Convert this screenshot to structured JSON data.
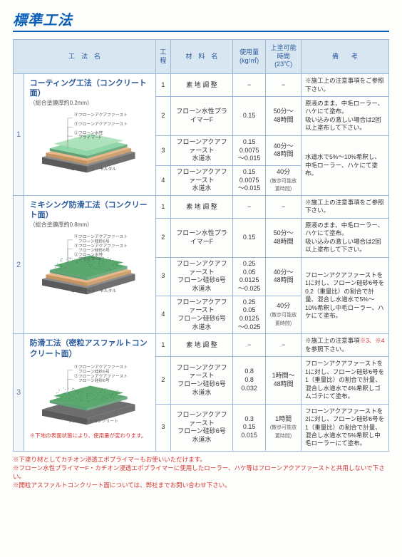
{
  "title": "標準工法",
  "headers": {
    "name": "工　法　名",
    "step": "工程",
    "material": "材　料　名",
    "usage": "使用量\n(kg/㎡)",
    "recoat": "上塗可能時間\n(23℃)",
    "remarks": "備　　考"
  },
  "groups": [
    {
      "num": "1",
      "method_title": "コーティング工法（コンクリート面）",
      "method_sub": "（総合塗膜厚約0.2mm）",
      "diagram_labels": [
        "④フローンアクアファースト",
        "③フローンアクアファースト",
        "②フローン水性\n　プライマーF",
        "コンクリート・モルタル"
      ],
      "diagram_colors": {
        "top": "#8fd6a8",
        "mid": "#e8b78a",
        "base": "#8c8c8c"
      },
      "rows": [
        {
          "step": "1",
          "material": "素 地 調 整",
          "usage": "−",
          "recoat": "−",
          "remark": "※施工上の注意事項をご参照下さい。"
        },
        {
          "step": "2",
          "material": "フローン水性プライマーF",
          "usage": "0.15",
          "recoat": "50分〜\n48時間",
          "remark": "原液のまま、中毛ローラー、ハケにて塗布。\n吸い込みの激しい場合は2回以上塗布して下さい。"
        },
        {
          "step": "3",
          "material": "フローンアクアファースト\n水道水",
          "usage": "0.15\n0.0075\n〜0.015",
          "recoat": "40分〜\n48時間",
          "remark": "水道水で5%〜10%希釈し、中毛ローラー、ハケにて塗布。",
          "merge_down_remark": true
        },
        {
          "step": "4",
          "material": "フローンアクアファースト\n水道水",
          "usage": "0.15\n0.0075\n〜0.015",
          "recoat": "40分",
          "recoat_sub": "(散歩可能放置時間)"
        }
      ]
    },
    {
      "num": "2",
      "method_title": "ミキシング防滑工法（コンクリート面）",
      "method_sub": "（総合塗膜厚約0.8mm）",
      "diagram_labels": [
        "④フローンアクアファースト\n　フローン硅砂6号",
        "③フローンアクアファースト\n　フローン硅砂6号",
        "②フローン水性\n　プライマーF",
        "コンクリート・モルタル"
      ],
      "diagram_colors": {
        "top": "#5aa86e",
        "mid": "#e8b78a",
        "base": "#8c8c8c"
      },
      "textured": true,
      "rows": [
        {
          "step": "1",
          "material": "素 地 調 整",
          "usage": "−",
          "recoat": "−",
          "remark": "※施工上の注意事項をご参照下さい。"
        },
        {
          "step": "2",
          "material": "フローン水性プライマーF",
          "usage": "0.15",
          "recoat": "50分〜\n48時間",
          "remark": "原液のまま、中毛ローラー、ハケにて塗布。\n吸い込みの激しい場合は2回以上塗布して下さい。"
        },
        {
          "step": "3",
          "material": "フローンアクアファースト\nフローン硅砂6号\n水道水",
          "usage": "0.25\n0.05\n0.0125\n〜0.025",
          "recoat": "40分〜\n48時間",
          "remark": "フローンアクアファーストを1に対し、フローン硅砂6号を0.2（重量比）の割合で計量、混合し水道水で5%〜10%希釈し中毛ローラー、ハケにて塗布。",
          "merge_down_remark": true
        },
        {
          "step": "4",
          "material": "フローンアクアファースト\nフローン硅砂6号\n水道水",
          "usage": "0.25\n0.05\n0.0125\n〜0.025",
          "recoat": "40分",
          "recoat_sub": "(散歩可能放置時間)"
        }
      ]
    },
    {
      "num": "3",
      "method_title": "防滑工法（密粒アスファルトコンクリート面）",
      "method_sub": "",
      "diagram_labels": [
        "③フローンアクアファースト\n　フローン硅砂6号",
        "②フローンアクアファースト\n　フローン硅砂6号",
        "アスファルトコンクリート"
      ],
      "diagram_colors": {
        "top": "#5aa86e",
        "base": "#6e6e6e"
      },
      "textured": true,
      "note": "※下地の表面状態により、使用量が変わります。",
      "rows": [
        {
          "step": "1",
          "material": "素 地 調 整",
          "usage": "−",
          "recoat": "−",
          "remark": "※施工上の注意事項",
          "remark_red": "※3、※4",
          "remark_after": "を参照下さい。"
        },
        {
          "step": "2",
          "material": "フローンアクアファースト\nフローン硅砂6号\n水道水",
          "usage": "0.8\n0.8\n0.032",
          "recoat": "1時間〜\n48時間",
          "remark": "フローンアクアファーストを1に対し、フローン硅砂6号を1（重量比）の割合で計量、混合し水道水で4%希釈しゴムゴテにて塗布。"
        },
        {
          "step": "3",
          "material": "フローンアクアファースト\nフローン硅砂6号\n水道水",
          "usage": "0.3\n0.15\n0.015",
          "recoat": "1時間",
          "recoat_sub": "(散歩可能放置時間)",
          "remark": "フローンアクアファーストを2に対し、フローン硅砂6号を1（重量比）の割合で計量、混合し水道水で5%希釈し中毛ローラーにて塗布。"
        }
      ]
    }
  ],
  "footnotes": [
    "※下塗り材としてカチオン浸透エポプライマーもお使いいただけます。",
    "※フローン水性プライマーF・カチオン浸透エポプライマーに使用したローラー、ハケ等はフローンアクアファーストと共用しないで下さい。",
    "※開粒アスファルトコンクリート面については、弊社までお問い合わせ下さい。"
  ]
}
